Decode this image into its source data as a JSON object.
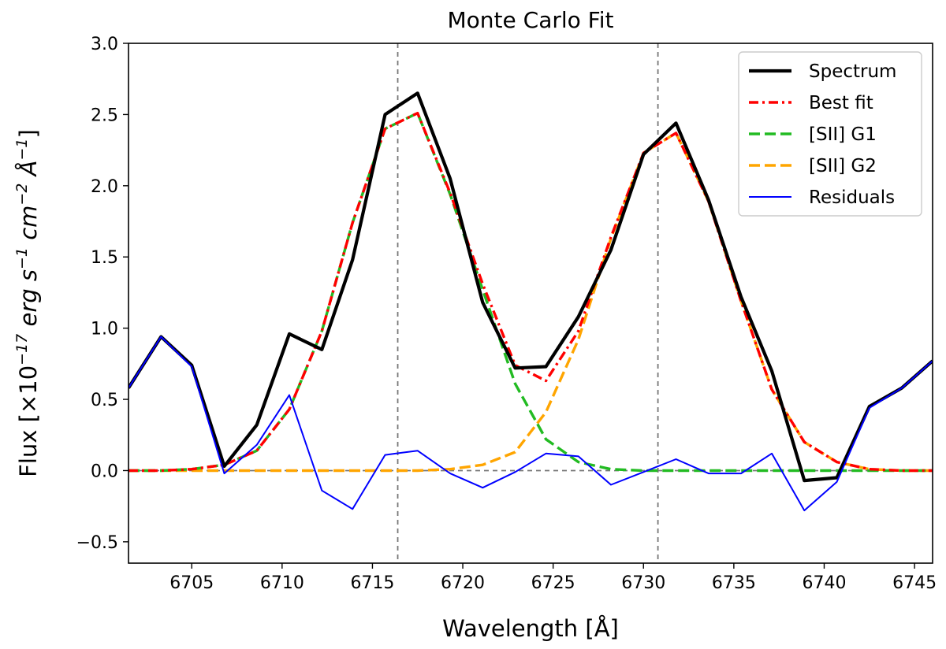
{
  "chart_data": {
    "type": "line",
    "title": "Monte Carlo Fit",
    "xlabel": "Wavelength [Å]",
    "ylabel": {
      "prefix": "Flux [×10",
      "exp1": "−17",
      "mid": " erg s",
      "exp2": "−1",
      "mid2": " cm",
      "exp3": "−2",
      "mid3": " Å",
      "exp4": "−1",
      "suffix": "]"
    },
    "xlim": [
      6701.5,
      6746
    ],
    "ylim": [
      -0.65,
      3.0
    ],
    "xticks": [
      6705,
      6710,
      6715,
      6720,
      6725,
      6730,
      6735,
      6740,
      6745
    ],
    "yticks": [
      -0.5,
      0.0,
      0.5,
      1.0,
      1.5,
      2.0,
      2.5,
      3.0
    ],
    "xtick_labels": [
      "6705",
      "6710",
      "6715",
      "6720",
      "6725",
      "6730",
      "6735",
      "6740",
      "6745"
    ],
    "ytick_labels": [
      "−0.5",
      "0.0",
      "0.5",
      "1.0",
      "1.5",
      "2.0",
      "2.5",
      "3.0"
    ],
    "vlines": [
      6716.4,
      6730.8
    ],
    "hline": 0.0,
    "legend_position": "top-right",
    "x": [
      6701.5,
      6703.3,
      6705.0,
      6706.8,
      6708.6,
      6710.4,
      6712.2,
      6713.9,
      6715.7,
      6717.5,
      6719.3,
      6721.1,
      6722.9,
      6724.6,
      6726.4,
      6728.2,
      6730.0,
      6731.8,
      6733.6,
      6735.4,
      6737.1,
      6738.9,
      6740.7,
      6742.5,
      6744.3,
      6746.0
    ],
    "series": [
      {
        "name": "Spectrum",
        "color": "#000000",
        "style": "solid-thick",
        "values": [
          0.58,
          0.94,
          0.74,
          0.03,
          0.32,
          0.96,
          0.85,
          1.48,
          2.5,
          2.65,
          2.05,
          1.18,
          0.72,
          0.73,
          1.08,
          1.55,
          2.22,
          2.44,
          1.9,
          1.22,
          0.7,
          -0.07,
          -0.05,
          0.45,
          0.58,
          0.77
        ]
      },
      {
        "name": "Best fit",
        "color": "#ff0000",
        "style": "dashdot",
        "values": [
          0.0,
          0.0,
          0.01,
          0.04,
          0.14,
          0.43,
          0.98,
          1.74,
          2.4,
          2.51,
          1.95,
          1.31,
          0.74,
          0.63,
          0.98,
          1.64,
          2.23,
          2.37,
          1.89,
          1.19,
          0.57,
          0.2,
          0.06,
          0.01,
          0.0,
          0.0
        ]
      },
      {
        "name": "[SII] G1",
        "color": "#22bb22",
        "style": "dashed",
        "values": [
          0.0,
          0.0,
          0.01,
          0.04,
          0.14,
          0.43,
          0.98,
          1.74,
          2.4,
          2.51,
          1.94,
          1.27,
          0.61,
          0.22,
          0.06,
          0.01,
          0.0,
          0.0,
          0.0,
          0.0,
          0.0,
          0.0,
          0.0,
          0.0,
          0.0,
          0.0
        ]
      },
      {
        "name": "[SII] G2",
        "color": "#ffa500",
        "style": "dashed",
        "values": [
          0.0,
          0.0,
          0.0,
          0.0,
          0.0,
          0.0,
          0.0,
          0.0,
          0.0,
          0.0,
          0.01,
          0.04,
          0.13,
          0.41,
          0.92,
          1.63,
          2.23,
          2.37,
          1.89,
          1.19,
          0.57,
          0.2,
          0.06,
          0.01,
          0.0,
          0.0
        ]
      },
      {
        "name": "Residuals",
        "color": "#0000ff",
        "style": "solid-thin",
        "values": [
          0.58,
          0.94,
          0.73,
          -0.02,
          0.18,
          0.53,
          -0.14,
          -0.27,
          0.11,
          0.14,
          -0.02,
          -0.12,
          -0.01,
          0.12,
          0.1,
          -0.1,
          -0.01,
          0.08,
          -0.02,
          -0.02,
          0.12,
          -0.28,
          -0.08,
          0.44,
          0.58,
          0.77
        ]
      }
    ]
  }
}
